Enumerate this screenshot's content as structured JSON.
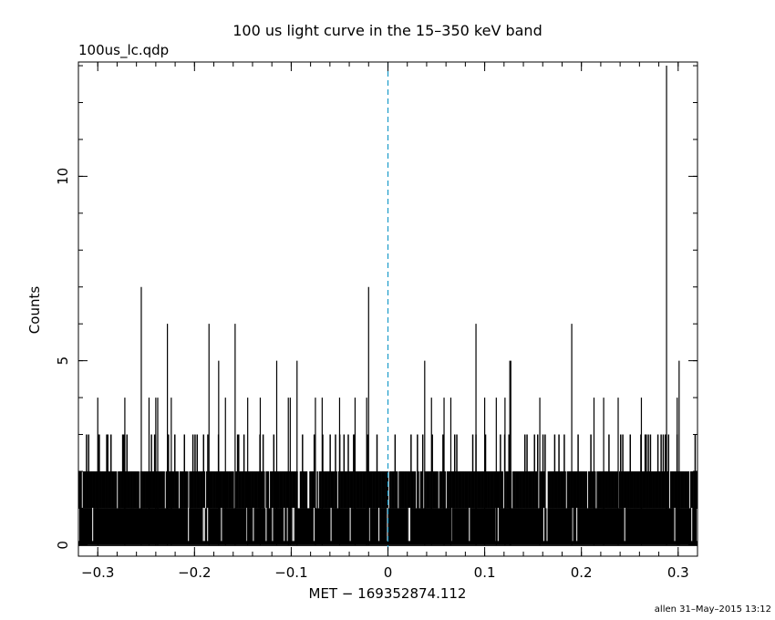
{
  "page": {
    "title": "100 us light curve in the 15–350 keV band",
    "file_label": "100us_lc.qdp",
    "footer": "allen 31–May–2015 13:12"
  },
  "chart_data": {
    "type": "bar",
    "title": "100 us light curve in the 15–350 keV band",
    "xlabel": "MET − 169352874.112",
    "ylabel": "Counts",
    "xlim": [
      -0.32,
      0.32
    ],
    "ylim": [
      -0.3,
      13.1
    ],
    "x_ticks": [
      -0.3,
      -0.2,
      -0.1,
      0,
      0.1,
      0.2,
      0.3
    ],
    "x_tick_labels": [
      "−0.3",
      "−0.2",
      "−0.1",
      "0",
      "0.1",
      "0.2",
      "0.3"
    ],
    "y_ticks": [
      0,
      5,
      10
    ],
    "y_tick_labels": [
      "0",
      "5",
      "10"
    ],
    "bin_width": 0.0001,
    "series": [
      {
        "values_note": "",
        "color": "#000000",
        "peaks": [
          {
            "x": -0.3,
            "y": 4
          },
          {
            "x": -0.272,
            "y": 4
          },
          {
            "x": -0.255,
            "y": 7
          },
          {
            "x": -0.247,
            "y": 4
          },
          {
            "x": -0.24,
            "y": 4
          },
          {
            "x": -0.238,
            "y": 4
          },
          {
            "x": -0.228,
            "y": 6
          },
          {
            "x": -0.224,
            "y": 4
          },
          {
            "x": -0.185,
            "y": 6
          },
          {
            "x": -0.175,
            "y": 5
          },
          {
            "x": -0.168,
            "y": 4
          },
          {
            "x": -0.158,
            "y": 6
          },
          {
            "x": -0.145,
            "y": 4
          },
          {
            "x": -0.132,
            "y": 4
          },
          {
            "x": -0.115,
            "y": 5
          },
          {
            "x": -0.103,
            "y": 4
          },
          {
            "x": -0.101,
            "y": 4
          },
          {
            "x": -0.094,
            "y": 5
          },
          {
            "x": -0.075,
            "y": 4
          },
          {
            "x": -0.068,
            "y": 4
          },
          {
            "x": -0.05,
            "y": 4
          },
          {
            "x": -0.034,
            "y": 4
          },
          {
            "x": -0.022,
            "y": 4
          },
          {
            "x": -0.02,
            "y": 7
          },
          {
            "x": 0.038,
            "y": 5
          },
          {
            "x": 0.045,
            "y": 4
          },
          {
            "x": 0.058,
            "y": 4
          },
          {
            "x": 0.065,
            "y": 4
          },
          {
            "x": 0.091,
            "y": 6
          },
          {
            "x": 0.1,
            "y": 4
          },
          {
            "x": 0.112,
            "y": 4
          },
          {
            "x": 0.121,
            "y": 4
          },
          {
            "x": 0.126,
            "y": 5
          },
          {
            "x": 0.127,
            "y": 5
          },
          {
            "x": 0.157,
            "y": 4
          },
          {
            "x": 0.19,
            "y": 6
          },
          {
            "x": 0.213,
            "y": 4
          },
          {
            "x": 0.223,
            "y": 4
          },
          {
            "x": 0.238,
            "y": 4
          },
          {
            "x": 0.262,
            "y": 4
          },
          {
            "x": 0.288,
            "y": 13
          },
          {
            "x": 0.301,
            "y": 5
          },
          {
            "x": 0.299,
            "y": 4
          }
        ]
      }
    ],
    "markers": [
      {
        "type": "vline",
        "x": 0,
        "style": "dashed",
        "color": "#1a9bc9"
      }
    ],
    "grid": false,
    "legend": "none"
  }
}
